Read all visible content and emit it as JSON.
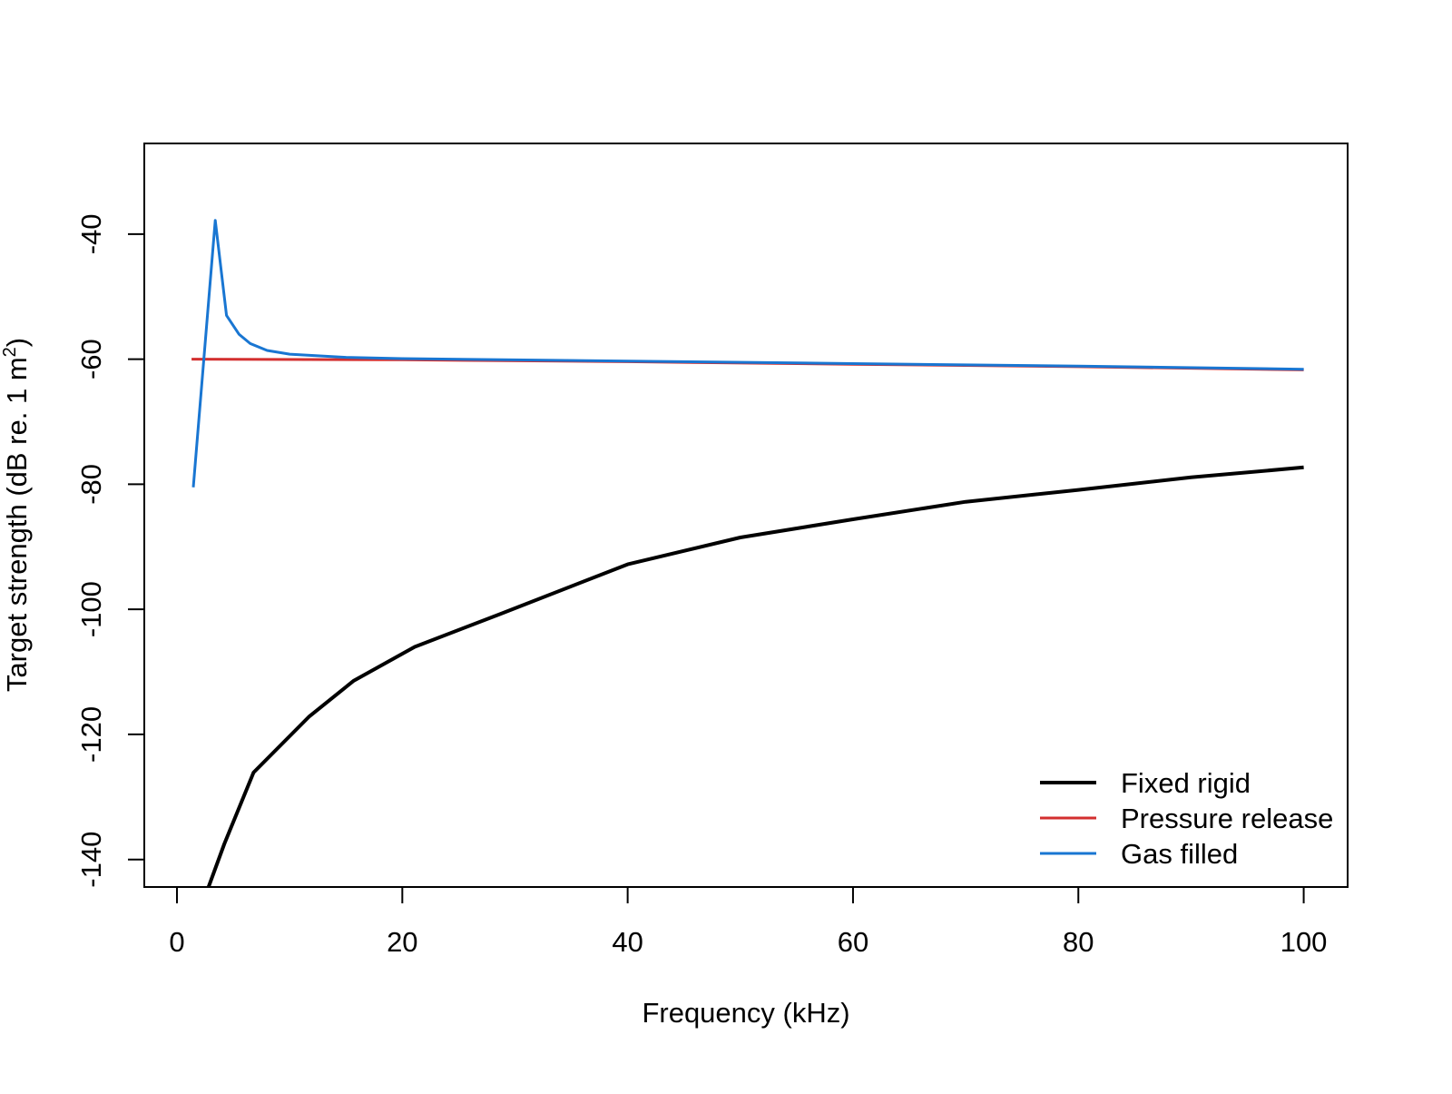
{
  "chart_data": {
    "type": "line",
    "title": "",
    "xlabel": "Frequency (kHz)",
    "ylabel_main": "Target strength (dB re. 1 m",
    "ylabel_sup": "2",
    "ylabel_close": ")",
    "xlim": [
      -2.9,
      103.9
    ],
    "ylim": [
      -144.4,
      -25.5
    ],
    "xticks": [
      0,
      20,
      40,
      60,
      80,
      100
    ],
    "yticks": [
      -140,
      -120,
      -100,
      -80,
      -60,
      -40
    ],
    "grid": false,
    "legend_position": "bottom-right",
    "series": [
      {
        "name": "Fixed rigid",
        "color": "#000000",
        "x": [
          2.8,
          4.2,
          6.8,
          11.7,
          15.7,
          21.1,
          28.6,
          40,
          50,
          60,
          70,
          80,
          90,
          100
        ],
        "y": [
          -144.4,
          -137.5,
          -126.1,
          -117.2,
          -111.4,
          -106.0,
          -100.8,
          -92.8,
          -88.5,
          -85.6,
          -82.8,
          -80.9,
          -78.9,
          -77.3
        ]
      },
      {
        "name": "Pressure release",
        "color": "#D32F2F",
        "x": [
          1.3,
          20,
          40,
          60,
          80,
          100
        ],
        "y": [
          -60.0,
          -60.1,
          -60.4,
          -60.8,
          -61.2,
          -61.7
        ]
      },
      {
        "name": "Gas filled",
        "color": "#1976D2",
        "x": [
          1.45,
          3.4,
          4.4,
          5.5,
          6.5,
          8,
          10,
          15,
          20,
          40,
          60,
          80,
          100
        ],
        "y": [
          -80.5,
          -37.8,
          -53.0,
          -56.0,
          -57.5,
          -58.6,
          -59.2,
          -59.7,
          -59.9,
          -60.3,
          -60.7,
          -61.1,
          -61.6
        ]
      }
    ]
  }
}
